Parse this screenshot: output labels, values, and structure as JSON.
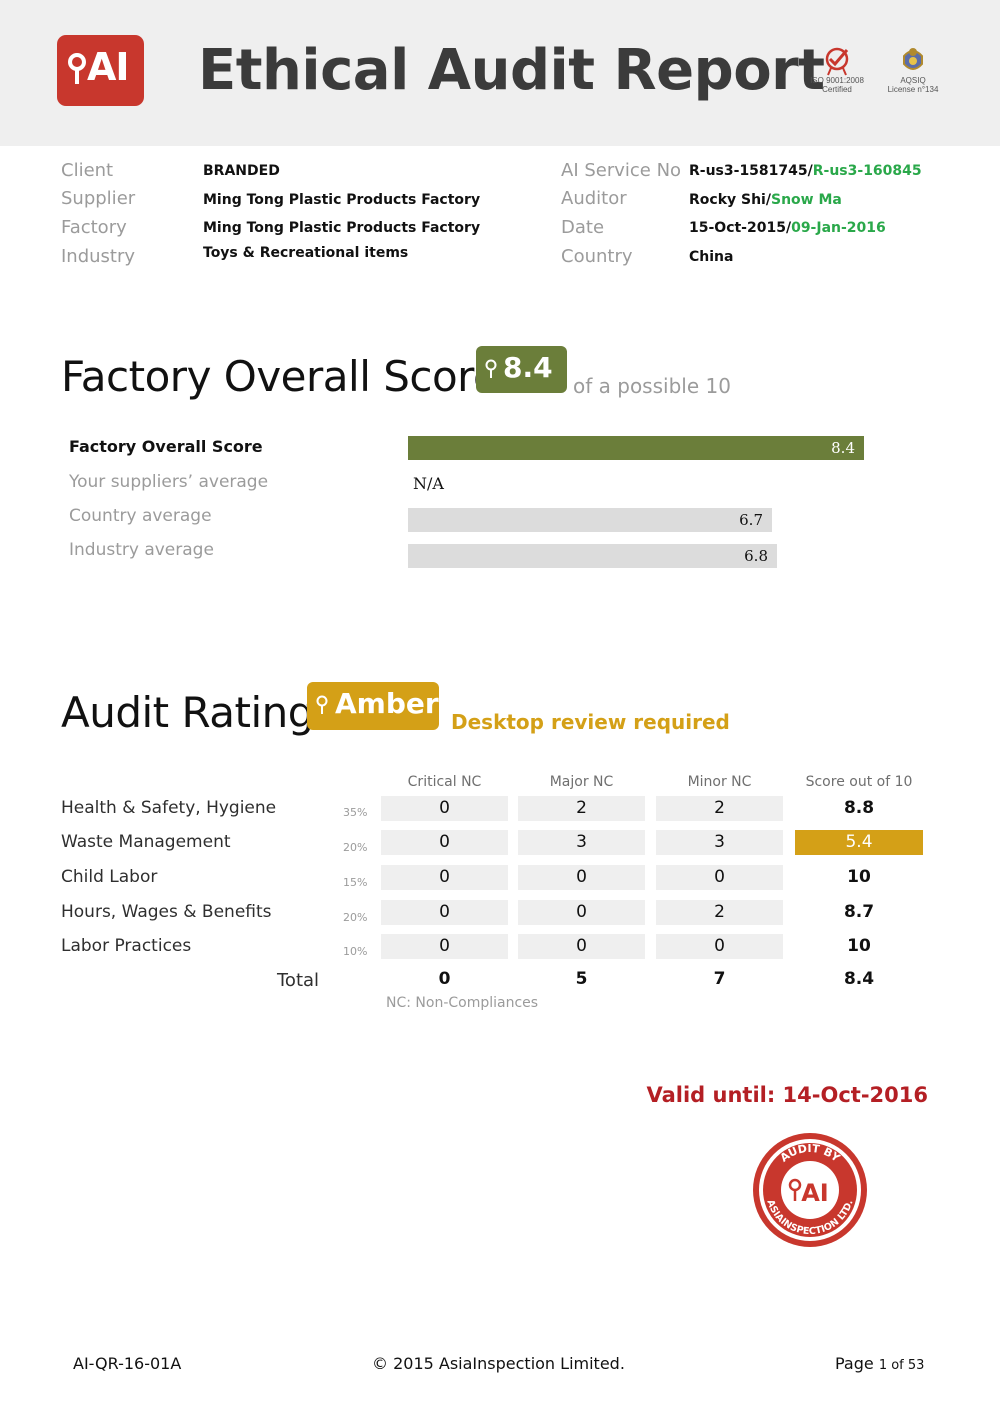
{
  "header": {
    "logo_text": "AI",
    "title": "Ethical Audit Report",
    "cert_iso": [
      "ISO 9001:2008",
      "Certified"
    ],
    "cert_aqsiq": [
      "AQSIQ",
      "License n°134"
    ]
  },
  "info": {
    "left": [
      {
        "label": "Client",
        "value": "BRANDED"
      },
      {
        "label": "Supplier",
        "value": "Ming Tong Plastic Products Factory"
      },
      {
        "label": "Factory",
        "value": "Ming Tong Plastic Products Factory"
      },
      {
        "label": "Industry",
        "value": "Toys & Recreational items"
      }
    ],
    "right": [
      {
        "label": "AI Service No",
        "value": "R-us3-1581745/",
        "value_green": "R-us3-160845"
      },
      {
        "label": "Auditor",
        "value": "Rocky Shi/",
        "value_green": "Snow Ma"
      },
      {
        "label": "Date",
        "value": "15-Oct-2015/",
        "value_green": "09-Jan-2016"
      },
      {
        "label": "Country",
        "value": "China",
        "value_green": ""
      }
    ]
  },
  "overall": {
    "title": "Factory Overall Score",
    "score": "8.4",
    "possible": "of a possible 10",
    "colors": {
      "score": "#6b7e3a",
      "bar": "#dcdcdc"
    },
    "bars": [
      {
        "label": "Factory Overall Score",
        "value": 8.4,
        "display": "8.4"
      },
      {
        "label": "Your suppliers’ average",
        "value": null,
        "display": "N/A"
      },
      {
        "label": "Country average",
        "value": 6.7,
        "display": "6.7"
      },
      {
        "label": "Industry average",
        "value": 6.8,
        "display": "6.8"
      }
    ]
  },
  "rating": {
    "title": "Audit Rating",
    "badge": "Amber",
    "note": "Desktop review required",
    "colors": {
      "amber": "#d4a017"
    },
    "columns": [
      "Critical NC",
      "Major NC",
      "Minor NC",
      "Score out of 10"
    ],
    "rows": [
      {
        "label": "Health & Safety, Hygiene",
        "weight": "35%",
        "critical": "0",
        "major": "2",
        "minor": "2",
        "score": "8.8"
      },
      {
        "label": "Waste Management",
        "weight": "20%",
        "critical": "0",
        "major": "3",
        "minor": "3",
        "score": "5.4"
      },
      {
        "label": "Child Labor",
        "weight": "15%",
        "critical": "0",
        "major": "0",
        "minor": "0",
        "score": "10"
      },
      {
        "label": "Hours, Wages & Benefits",
        "weight": "20%",
        "critical": "0",
        "major": "0",
        "minor": "2",
        "score": "8.7"
      },
      {
        "label": "Labor Practices",
        "weight": "10%",
        "critical": "0",
        "major": "0",
        "minor": "0",
        "score": "10"
      }
    ],
    "total": {
      "label": "Total",
      "critical": "0",
      "major": "5",
      "minor": "7",
      "score": "8.4"
    },
    "nc_note": "NC: Non-Compliances"
  },
  "valid_until": "Valid until: 14-Oct-2016",
  "seal": {
    "top_text": "AUDIT BY",
    "bottom_text": "ASIAINSPECTION LTD.",
    "logo_text": "AI"
  },
  "footer": {
    "code": "AI-QR-16-01A",
    "copyright": "© 2015 AsiaInspection Limited.",
    "page_word": "Page",
    "page_num": "1 of 53"
  }
}
